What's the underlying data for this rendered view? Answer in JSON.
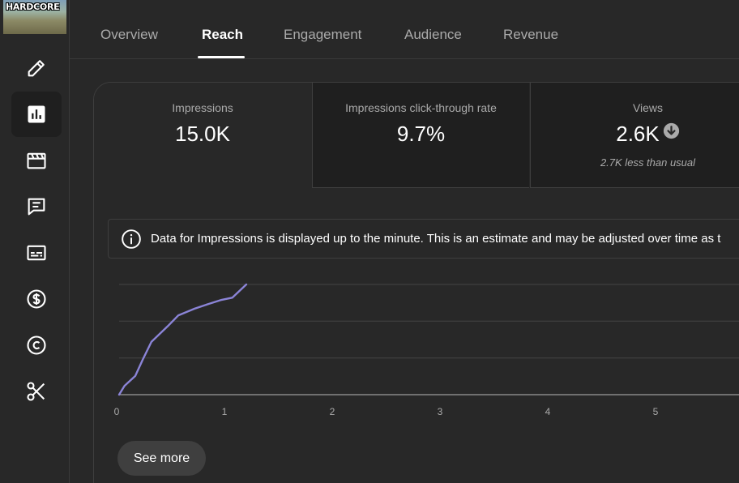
{
  "sidebar": {
    "channel_thumbnail_text": "HARDCORE",
    "items": [
      {
        "icon": "pencil-icon"
      },
      {
        "icon": "analytics-icon",
        "active": true
      },
      {
        "icon": "clapperboard-icon"
      },
      {
        "icon": "comments-icon"
      },
      {
        "icon": "subtitles-icon"
      },
      {
        "icon": "monetization-icon"
      },
      {
        "icon": "copyright-icon"
      },
      {
        "icon": "scissors-icon"
      }
    ]
  },
  "tabs": [
    {
      "label": "Overview"
    },
    {
      "label": "Reach",
      "active": true
    },
    {
      "label": "Engagement"
    },
    {
      "label": "Audience"
    },
    {
      "label": "Revenue"
    }
  ],
  "metrics": [
    {
      "label": "Impressions",
      "value": "15.0K"
    },
    {
      "label": "Impressions click-through rate",
      "value": "9.7%"
    },
    {
      "label": "Views",
      "value": "2.6K",
      "note": "2.7K less than usual",
      "trend": "down"
    }
  ],
  "info": {
    "text": "Data for Impressions is displayed up to the minute. This is an estimate and may be adjusted over time as t"
  },
  "see_more_label": "See more",
  "colors": {
    "background": "#282828",
    "selected_metric_bg": "#282828",
    "unselected_metric_bg": "#1f1f1f",
    "line": "#8b84d7",
    "muted_text": "#aaaaaa"
  },
  "chart_data": {
    "type": "line",
    "x_ticks": [
      "0",
      "1",
      "2",
      "3",
      "4",
      "5"
    ],
    "grid": true,
    "series": [
      {
        "x": [
          0,
          0.05,
          0.15,
          0.22,
          0.3,
          0.45,
          0.55,
          0.7,
          0.82,
          0.95,
          1.05,
          1.18
        ],
        "y": [
          0,
          0.08,
          0.17,
          0.32,
          0.48,
          0.62,
          0.72,
          0.78,
          0.82,
          0.86,
          0.88,
          1.0
        ]
      }
    ]
  }
}
